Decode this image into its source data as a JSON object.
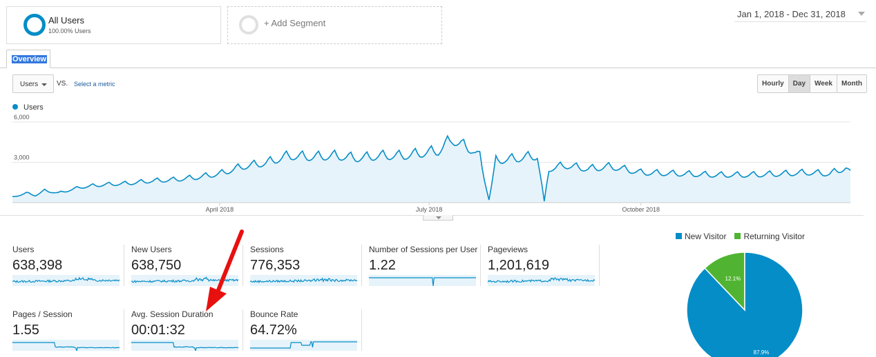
{
  "segments": {
    "all_users": {
      "name": "All Users",
      "sub": "100.00% Users"
    },
    "add_label": "+ Add Segment"
  },
  "date_range": "Jan 1, 2018 - Dec 31, 2018",
  "tabs": [
    {
      "label": "Overview"
    }
  ],
  "controls": {
    "metric": "Users",
    "vs": "VS.",
    "select_metric": "Select a metric",
    "granularity": [
      "Hourly",
      "Day",
      "Week",
      "Month"
    ],
    "granularity_active": "Day"
  },
  "colors": {
    "series": "#058dc7",
    "new_visitor": "#058dc7",
    "returning_visitor": "#50b432",
    "arrow": "#e8100f"
  },
  "chart_data": [
    {
      "type": "area",
      "series_name": "Users",
      "ylim": [
        0,
        6000
      ],
      "y_ticks": [
        "6,000",
        "3,000"
      ],
      "x_tick_labels": [
        "April 2018",
        "July 2018",
        "October 2018"
      ],
      "x_tick_days": [
        90,
        181,
        273
      ],
      "anchors_day_value": [
        [
          0,
          450
        ],
        [
          6,
          800
        ],
        [
          10,
          600
        ],
        [
          14,
          1000
        ],
        [
          20,
          800
        ],
        [
          30,
          1300
        ],
        [
          40,
          1500
        ],
        [
          50,
          1600
        ],
        [
          60,
          1800
        ],
        [
          70,
          1900
        ],
        [
          80,
          2100
        ],
        [
          90,
          2400
        ],
        [
          95,
          2700
        ],
        [
          100,
          3000
        ],
        [
          110,
          3300
        ],
        [
          115,
          3600
        ],
        [
          120,
          3900
        ],
        [
          130,
          3800
        ],
        [
          140,
          3900
        ],
        [
          150,
          3700
        ],
        [
          160,
          3900
        ],
        [
          170,
          3900
        ],
        [
          181,
          4200
        ],
        [
          185,
          4300
        ],
        [
          191,
          5300
        ],
        [
          196,
          4700
        ],
        [
          200,
          4400
        ],
        [
          203,
          3800
        ],
        [
          207,
          200
        ],
        [
          210,
          3500
        ],
        [
          220,
          3700
        ],
        [
          228,
          3900
        ],
        [
          231,
          100
        ],
        [
          233,
          2800
        ],
        [
          240,
          3100
        ],
        [
          250,
          2800
        ],
        [
          260,
          3000
        ],
        [
          273,
          2500
        ],
        [
          290,
          2400
        ],
        [
          305,
          2300
        ],
        [
          320,
          2300
        ],
        [
          335,
          2400
        ],
        [
          345,
          2500
        ],
        [
          355,
          2400
        ],
        [
          362,
          2900
        ],
        [
          364,
          2400
        ]
      ],
      "weekly_peaks_amplitude": 0.35,
      "grid": true
    },
    {
      "type": "pie",
      "legend": [
        "New Visitor",
        "Returning Visitor"
      ],
      "values": [
        87.9,
        12.1
      ],
      "labels": [
        "87.9%",
        "12.1%"
      ],
      "legend_position": "top"
    }
  ],
  "metrics": [
    {
      "title": "Users",
      "value": "638,398",
      "spark": "noisy"
    },
    {
      "title": "New Users",
      "value": "638,750",
      "spark": "noisy"
    },
    {
      "title": "Sessions",
      "value": "776,353",
      "spark": "noisy"
    },
    {
      "title": "Number of Sessions per User",
      "value": "1.22",
      "spark": "flat"
    },
    {
      "title": "Pageviews",
      "value": "1,201,619",
      "spark": "noisy"
    },
    {
      "title": "Pages / Session",
      "value": "1.55",
      "spark": "step_down"
    },
    {
      "title": "Avg. Session Duration",
      "value": "00:01:32",
      "spark": "step_down"
    },
    {
      "title": "Bounce Rate",
      "value": "64.72%",
      "spark": "step_up"
    }
  ]
}
